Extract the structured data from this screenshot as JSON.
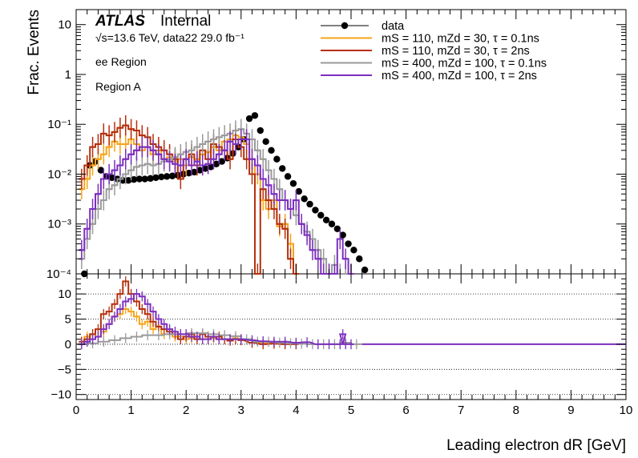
{
  "chart_data": [
    {
      "panel": "main",
      "type": "line",
      "yscale": "log",
      "xlim": [
        0,
        10
      ],
      "ylim": [
        0.0001,
        20
      ],
      "ylabel": "Frac. Events",
      "y_ticks": [
        {
          "value": 10,
          "label": "10"
        },
        {
          "value": 1,
          "label": "1"
        },
        {
          "value": 0.1,
          "label": "10⁻¹"
        },
        {
          "value": 0.01,
          "label": "10⁻²"
        },
        {
          "value": 0.001,
          "label": "10⁻³"
        },
        {
          "value": 0.0001,
          "label": "10⁻⁴"
        }
      ],
      "annotations": {
        "experiment": "ATLAS",
        "status": "Internal",
        "energy": "√s=13.6 TeV, data22 29.0 fb⁻¹",
        "region_1": "ee Region",
        "region_2": "Region A"
      },
      "legend_position": "top-right",
      "series": [
        {
          "name": "data",
          "style": "markers",
          "color": "#000000",
          "x": [
            0.15,
            0.25,
            0.35,
            0.45,
            0.55,
            0.65,
            0.75,
            0.85,
            0.95,
            1.05,
            1.15,
            1.25,
            1.35,
            1.45,
            1.55,
            1.65,
            1.75,
            1.85,
            1.95,
            2.05,
            2.15,
            2.25,
            2.35,
            2.45,
            2.55,
            2.65,
            2.75,
            2.85,
            2.95,
            3.05,
            3.15,
            3.25,
            3.35,
            3.45,
            3.55,
            3.65,
            3.75,
            3.85,
            3.95,
            4.05,
            4.15,
            4.25,
            4.35,
            4.45,
            4.55,
            4.65,
            4.75,
            4.85,
            4.95,
            5.05,
            5.15,
            5.25
          ],
          "y": [
            0.0001,
            0.015,
            0.018,
            0.012,
            0.009,
            0.0085,
            0.008,
            0.0075,
            0.0075,
            0.0078,
            0.008,
            0.008,
            0.0082,
            0.0085,
            0.0088,
            0.009,
            0.0092,
            0.0095,
            0.01,
            0.0105,
            0.011,
            0.012,
            0.013,
            0.014,
            0.016,
            0.018,
            0.021,
            0.026,
            0.035,
            0.05,
            0.13,
            0.15,
            0.075,
            0.045,
            0.03,
            0.02,
            0.013,
            0.009,
            0.0065,
            0.0045,
            0.0032,
            0.0025,
            0.0019,
            0.0015,
            0.0012,
            0.001,
            0.0008,
            0.0006,
            0.0004,
            0.0003,
            0.0002,
            0.00012
          ]
        },
        {
          "name": "mS = 110, mZd = 30, τ = 0.1ns",
          "color": "#f5a41b",
          "x": [
            0.1,
            0.2,
            0.3,
            0.4,
            0.5,
            0.6,
            0.7,
            0.8,
            0.9,
            1.0,
            1.1,
            1.2,
            1.3,
            1.4,
            1.5,
            1.6,
            1.7,
            1.8,
            1.9,
            2.0,
            2.1,
            2.2,
            2.3,
            2.4,
            2.5,
            2.6,
            2.7,
            2.8,
            2.9,
            3.0,
            3.1,
            3.2,
            3.3,
            3.4,
            3.5,
            3.6,
            3.7,
            3.8,
            3.9,
            4.0
          ],
          "y": [
            0.005,
            0.008,
            0.015,
            0.02,
            0.025,
            0.035,
            0.045,
            0.04,
            0.04,
            0.05,
            0.04,
            0.03,
            0.035,
            0.025,
            0.03,
            0.02,
            0.022,
            0.018,
            0.02,
            0.015,
            0.022,
            0.02,
            0.025,
            0.028,
            0.035,
            0.03,
            0.045,
            0.05,
            0.06,
            0.055,
            0.04,
            0.02,
            0.01,
            0.003,
            0.002,
            0.003,
            0.0009,
            0.001,
            0.0004,
            0.0001
          ]
        },
        {
          "name": "mS = 110, mZd = 30, τ = 2ns",
          "color": "#b5300d",
          "x": [
            0.1,
            0.2,
            0.3,
            0.4,
            0.5,
            0.6,
            0.7,
            0.8,
            0.9,
            1.0,
            1.1,
            1.2,
            1.3,
            1.4,
            1.5,
            1.6,
            1.7,
            1.8,
            1.9,
            2.0,
            2.1,
            2.2,
            2.3,
            2.4,
            2.5,
            2.6,
            2.7,
            2.8,
            2.9,
            3.0,
            3.1,
            3.2,
            3.3,
            3.4,
            3.5,
            3.6,
            3.7,
            3.8,
            3.9,
            4.0
          ],
          "y": [
            0.008,
            0.015,
            0.035,
            0.04,
            0.065,
            0.06,
            0.07,
            0.085,
            0.095,
            0.08,
            0.075,
            0.06,
            0.055,
            0.04,
            0.035,
            0.03,
            0.025,
            0.02,
            0.008,
            0.02,
            0.025,
            0.015,
            0.03,
            0.02,
            0.04,
            0.035,
            0.03,
            0.02,
            0.05,
            0.035,
            0.02,
            0.01,
            0.0001,
            0.005,
            0.003,
            0.002,
            0.001,
            0.0008,
            0.0002,
            0.0001
          ]
        },
        {
          "name": "mS = 400, mZd = 100, τ = 0.1ns",
          "color": "#9a9a9a",
          "x": [
            0.1,
            0.2,
            0.3,
            0.4,
            0.5,
            0.6,
            0.7,
            0.8,
            0.9,
            1.0,
            1.1,
            1.2,
            1.3,
            1.4,
            1.5,
            1.6,
            1.7,
            1.8,
            1.9,
            2.0,
            2.1,
            2.2,
            2.3,
            2.4,
            2.5,
            2.6,
            2.7,
            2.8,
            2.9,
            3.0,
            3.1,
            3.2,
            3.3,
            3.4,
            3.5,
            3.6,
            3.7,
            3.8,
            3.9,
            4.0,
            4.1,
            4.2,
            4.3,
            4.4,
            4.5,
            4.6,
            4.7,
            4.8,
            4.9,
            5.0
          ],
          "y": [
            0.0002,
            0.0005,
            0.001,
            0.002,
            0.003,
            0.005,
            0.006,
            0.008,
            0.01,
            0.012,
            0.014,
            0.015,
            0.016,
            0.015,
            0.016,
            0.018,
            0.02,
            0.022,
            0.025,
            0.028,
            0.03,
            0.035,
            0.04,
            0.045,
            0.05,
            0.055,
            0.06,
            0.065,
            0.075,
            0.08,
            0.065,
            0.05,
            0.03,
            0.02,
            0.012,
            0.008,
            0.005,
            0.003,
            0.002,
            0.0015,
            0.001,
            0.0007,
            0.0005,
            0.0003,
            0.0002,
            0.0001,
            0.00015,
            0.0001,
            0.0001,
            0.0001
          ]
        },
        {
          "name": "mS = 400, mZd = 100, τ = 2ns",
          "color": "#7b2fbe",
          "x": [
            0.1,
            0.2,
            0.3,
            0.4,
            0.5,
            0.6,
            0.7,
            0.8,
            0.9,
            1.0,
            1.1,
            1.2,
            1.3,
            1.4,
            1.5,
            1.6,
            1.7,
            1.8,
            1.9,
            2.0,
            2.1,
            2.2,
            2.3,
            2.4,
            2.5,
            2.6,
            2.7,
            2.8,
            2.9,
            3.0,
            3.1,
            3.2,
            3.3,
            3.4,
            3.5,
            3.6,
            3.7,
            3.8,
            3.9,
            4.0,
            4.1,
            4.2,
            4.3,
            4.4,
            4.5,
            4.6,
            4.7,
            4.8,
            4.9,
            5.0
          ],
          "y": [
            0.0003,
            0.0008,
            0.002,
            0.004,
            0.008,
            0.01,
            0.012,
            0.015,
            0.02,
            0.025,
            0.03,
            0.035,
            0.035,
            0.03,
            0.025,
            0.02,
            0.018,
            0.016,
            0.015,
            0.02,
            0.015,
            0.018,
            0.015,
            0.016,
            0.02,
            0.025,
            0.03,
            0.045,
            0.04,
            0.05,
            0.05,
            0.02,
            0.015,
            0.008,
            0.006,
            0.004,
            0.003,
            0.003,
            0.002,
            0.003,
            0.001,
            0.0006,
            0.0003,
            0.0002,
            0.0001,
            0.0001,
            0.0001,
            0.0005,
            0.0002,
            0.0001
          ]
        }
      ]
    },
    {
      "panel": "ratio",
      "type": "line",
      "xlim": [
        0,
        10
      ],
      "ylim": [
        -11,
        14
      ],
      "xlabel": "Leading electron dR [GeV]",
      "y_ticks": [
        {
          "value": 10,
          "label": "10"
        },
        {
          "value": 5,
          "label": "5"
        },
        {
          "value": 0,
          "label": "0"
        },
        {
          "value": -5,
          "label": "−5"
        },
        {
          "value": -10,
          "label": "−10"
        }
      ],
      "x_ticks": [
        {
          "value": 0,
          "label": "0"
        },
        {
          "value": 1,
          "label": "1"
        },
        {
          "value": 2,
          "label": "2"
        },
        {
          "value": 3,
          "label": "3"
        },
        {
          "value": 4,
          "label": "4"
        },
        {
          "value": 5,
          "label": "5"
        },
        {
          "value": 6,
          "label": "6"
        },
        {
          "value": 7,
          "label": "7"
        },
        {
          "value": 8,
          "label": "8"
        },
        {
          "value": 9,
          "label": "9"
        },
        {
          "value": 10,
          "label": "10"
        }
      ],
      "grid_lines_y": [
        10,
        5,
        0,
        -5,
        -10
      ],
      "series": [
        {
          "color": "#f5a41b",
          "x": [
            0.1,
            0.2,
            0.3,
            0.4,
            0.5,
            0.6,
            0.7,
            0.8,
            0.9,
            1.0,
            1.1,
            1.2,
            1.3,
            1.4,
            1.5,
            1.6,
            1.7,
            1.8,
            1.9,
            2.0,
            2.1,
            2.2,
            2.3,
            2.4,
            2.5,
            2.6,
            2.7,
            2.8,
            2.9,
            3.0,
            3.2,
            3.4,
            3.6,
            3.8,
            4.0
          ],
          "y": [
            0.5,
            1.5,
            2,
            1.5,
            2.5,
            4,
            5.5,
            6,
            7,
            6.5,
            5.5,
            4,
            4.5,
            3,
            3.5,
            2,
            2,
            1.5,
            1.5,
            1,
            1.2,
            1,
            1,
            1,
            1.2,
            1,
            1,
            1,
            1.2,
            1,
            0.3,
            0.2,
            0.2,
            0.1,
            0
          ]
        },
        {
          "color": "#b5300d",
          "x": [
            0.1,
            0.2,
            0.3,
            0.4,
            0.5,
            0.6,
            0.7,
            0.8,
            0.9,
            1.0,
            1.1,
            1.2,
            1.3,
            1.4,
            1.5,
            1.6,
            1.7,
            1.8,
            1.9,
            2.0,
            2.1,
            2.2,
            2.3,
            2.4,
            2.5,
            2.6,
            2.7,
            2.8,
            2.9,
            3.0,
            3.2,
            3.4,
            3.6,
            3.8,
            4.0
          ],
          "y": [
            0.5,
            1,
            2,
            3,
            6,
            6.5,
            8,
            10,
            12.5,
            10,
            8.5,
            7,
            6,
            4.5,
            3.5,
            3,
            2.5,
            2,
            1,
            1.5,
            2,
            1,
            2,
            1.5,
            1.5,
            1.5,
            1,
            0.7,
            1,
            0.8,
            0.3,
            0,
            0.1,
            0,
            0
          ]
        },
        {
          "color": "#9a9a9a",
          "x": [
            0.1,
            0.3,
            0.5,
            0.7,
            0.9,
            1.1,
            1.3,
            1.5,
            1.7,
            1.9,
            2.1,
            2.3,
            2.5,
            2.7,
            2.9,
            3.1,
            3.3,
            3.5,
            3.7,
            3.9,
            4.1,
            4.3,
            4.5,
            4.7,
            4.9,
            5.1
          ],
          "y": [
            0,
            0.2,
            0.5,
            0.8,
            1.2,
            1.5,
            1.8,
            1.8,
            2,
            2,
            2.2,
            2.2,
            2,
            1.8,
            1.6,
            1,
            0.5,
            0.5,
            0.3,
            0.2,
            0.1,
            0,
            0,
            0,
            0.3,
            0
          ]
        },
        {
          "color": "#7b2fbe",
          "x": [
            0.1,
            0.2,
            0.3,
            0.4,
            0.5,
            0.6,
            0.7,
            0.8,
            0.9,
            1.0,
            1.1,
            1.2,
            1.3,
            1.4,
            1.5,
            1.6,
            1.7,
            1.8,
            1.9,
            2.0,
            2.1,
            2.2,
            2.3,
            2.4,
            2.5,
            2.6,
            2.8,
            3.0,
            3.2,
            3.4,
            3.6,
            3.8,
            4.0,
            4.2,
            4.4,
            4.6,
            4.8,
            4.85,
            4.9,
            5.0
          ],
          "y": [
            0,
            0.5,
            1,
            1.5,
            3,
            4,
            5.5,
            7,
            8.5,
            9,
            10,
            9.5,
            8,
            6.5,
            5,
            4,
            3,
            2.5,
            2,
            2,
            1.5,
            1.5,
            1,
            1,
            1.5,
            1,
            1,
            1,
            0.8,
            0.6,
            0.5,
            0.5,
            0.3,
            0.4,
            0,
            0,
            0,
            2,
            0,
            0
          ]
        }
      ]
    }
  ]
}
